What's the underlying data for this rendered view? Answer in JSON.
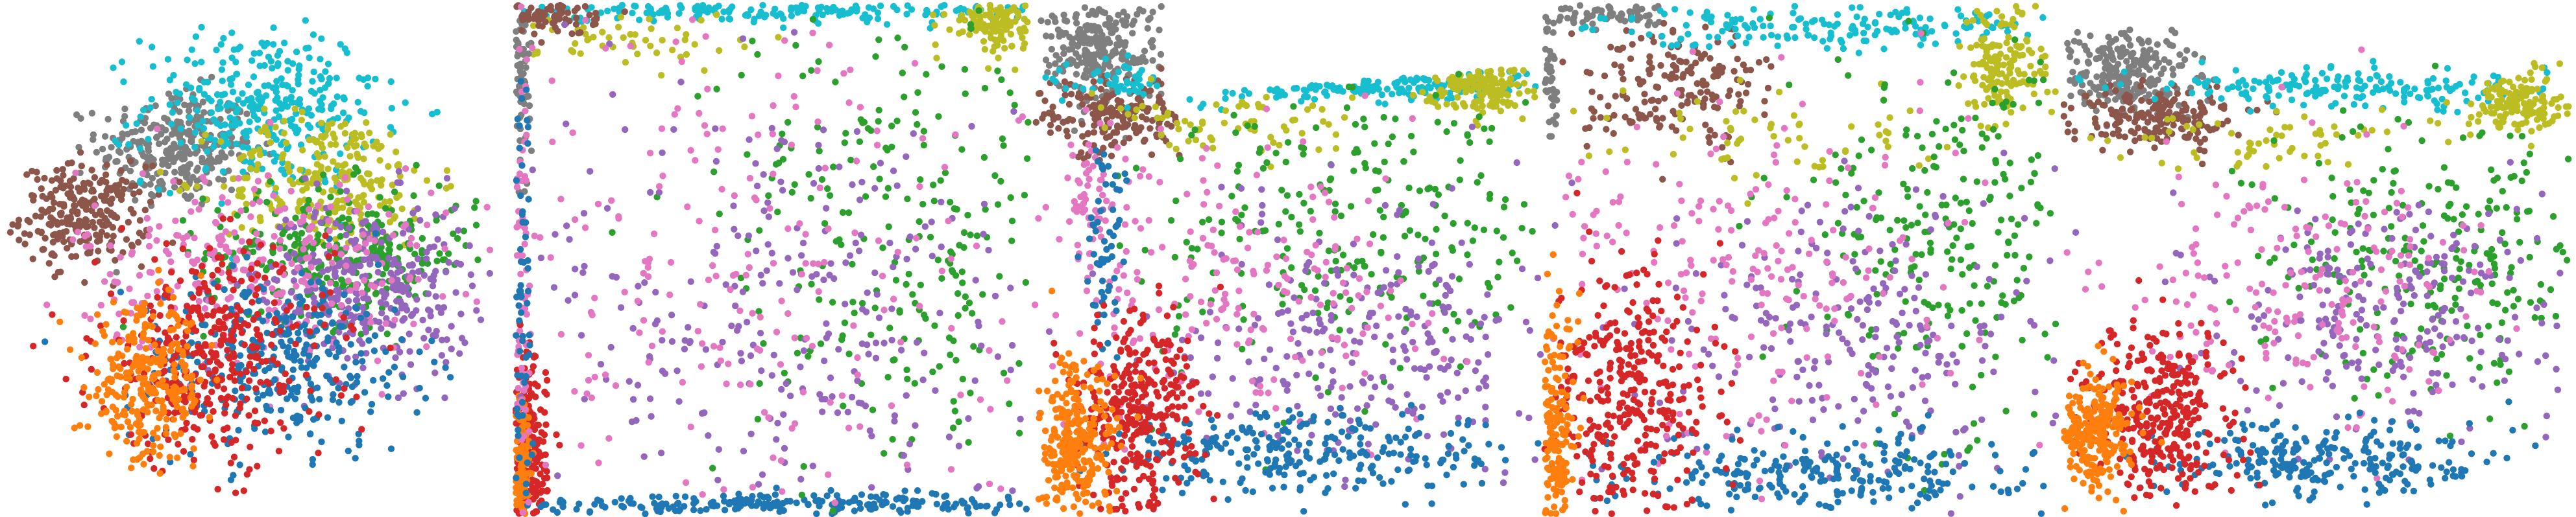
{
  "palette": {
    "blue": "#1f77b4",
    "orange": "#ff7f0e",
    "green": "#2ca02c",
    "red": "#d62728",
    "purple": "#9467bd",
    "brown": "#8c564b",
    "pink": "#e377c2",
    "gray": "#7f7f7f",
    "olive": "#bcbd22",
    "cyan": "#17becf"
  },
  "chart_data": [
    {
      "type": "scatter",
      "title": "",
      "xlabel": "",
      "ylabel": "",
      "axes": "hidden",
      "grid": false,
      "legend": "none",
      "xlim": [
        -1,
        1
      ],
      "ylim": [
        -1,
        1
      ],
      "clusters": [
        {
          "color": "gray",
          "cx": -0.3,
          "cy": 0.45,
          "sx": 0.16,
          "sy": 0.12,
          "n": 300
        },
        {
          "color": "brown",
          "cx": -0.68,
          "cy": 0.18,
          "sx": 0.13,
          "sy": 0.1,
          "n": 260
        },
        {
          "color": "cyan",
          "cx": 0.05,
          "cy": 0.62,
          "sx": 0.24,
          "sy": 0.16,
          "n": 330
        },
        {
          "color": "olive",
          "cx": 0.32,
          "cy": 0.32,
          "sx": 0.22,
          "sy": 0.14,
          "n": 260
        },
        {
          "color": "green",
          "cx": 0.38,
          "cy": 0.02,
          "sx": 0.28,
          "sy": 0.14,
          "n": 300
        },
        {
          "color": "purple",
          "cx": 0.48,
          "cy": -0.12,
          "sx": 0.22,
          "sy": 0.18,
          "n": 320
        },
        {
          "color": "pink",
          "cx": 0.05,
          "cy": -0.02,
          "sx": 0.38,
          "sy": 0.2,
          "n": 280
        },
        {
          "color": "blue",
          "cx": 0.12,
          "cy": -0.42,
          "sx": 0.3,
          "sy": 0.18,
          "n": 340
        },
        {
          "color": "red",
          "cx": -0.15,
          "cy": -0.4,
          "sx": 0.24,
          "sy": 0.22,
          "n": 380
        },
        {
          "color": "orange",
          "cx": -0.42,
          "cy": -0.52,
          "sx": 0.12,
          "sy": 0.16,
          "n": 280
        }
      ]
    },
    {
      "type": "scatter",
      "title": "",
      "xlabel": "",
      "ylabel": "",
      "axes": "hidden",
      "grid": false,
      "legend": "none",
      "xlim": [
        0,
        1
      ],
      "ylim": [
        0,
        1
      ],
      "clusters": [
        {
          "color": "cyan",
          "cx": 0.45,
          "cy": 0.99,
          "sx": 0.35,
          "sy": 0.01,
          "n": 170
        },
        {
          "color": "olive",
          "cx": 0.94,
          "cy": 0.97,
          "sx": 0.05,
          "sy": 0.03,
          "n": 110
        },
        {
          "color": "olive",
          "cx": 0.25,
          "cy": 0.93,
          "sx": 0.1,
          "sy": 0.03,
          "n": 50
        },
        {
          "color": "gray",
          "cx": 0.01,
          "cy": 0.85,
          "sx": 0.01,
          "sy": 0.12,
          "n": 60
        },
        {
          "color": "brown",
          "cx": 0.06,
          "cy": 0.98,
          "sx": 0.05,
          "sy": 0.02,
          "n": 70
        },
        {
          "color": "red",
          "cx": 0.02,
          "cy": 0.1,
          "sx": 0.02,
          "sy": 0.1,
          "n": 230
        },
        {
          "color": "orange",
          "cx": 0.01,
          "cy": 0.08,
          "sx": 0.01,
          "sy": 0.08,
          "n": 120
        },
        {
          "color": "blue",
          "cx": 0.55,
          "cy": 0.02,
          "sx": 0.3,
          "sy": 0.01,
          "n": 220
        },
        {
          "color": "green",
          "cx": 0.75,
          "cy": 0.55,
          "sx": 0.18,
          "sy": 0.25,
          "n": 230
        },
        {
          "color": "purple",
          "cx": 0.55,
          "cy": 0.38,
          "sx": 0.25,
          "sy": 0.25,
          "n": 260
        },
        {
          "color": "pink",
          "cx": 0.4,
          "cy": 0.5,
          "sx": 0.3,
          "sy": 0.3,
          "n": 200
        },
        {
          "color": "pink",
          "cx": 0.01,
          "cy": 0.55,
          "sx": 0.01,
          "sy": 0.25,
          "n": 60
        },
        {
          "color": "blue",
          "cx": 0.01,
          "cy": 0.45,
          "sx": 0.01,
          "sy": 0.25,
          "n": 60
        }
      ]
    },
    {
      "type": "scatter",
      "title": "",
      "xlabel": "",
      "ylabel": "",
      "axes": "hidden",
      "grid": false,
      "legend": "none",
      "xlim": [
        0,
        1
      ],
      "ylim": [
        0,
        1
      ],
      "clusters": [
        {
          "color": "gray",
          "cx": 0.12,
          "cy": 0.91,
          "sx": 0.06,
          "sy": 0.05,
          "n": 260
        },
        {
          "color": "brown",
          "cx": 0.15,
          "cy": 0.78,
          "sx": 0.07,
          "sy": 0.04,
          "n": 180
        },
        {
          "color": "cyan",
          "cx": 0.55,
          "cy": 0.85,
          "sx": 0.25,
          "sy": 0.02,
          "n": 200
        },
        {
          "color": "olive",
          "cx": 0.88,
          "cy": 0.85,
          "sx": 0.05,
          "sy": 0.03,
          "n": 150
        },
        {
          "color": "olive",
          "cx": 0.4,
          "cy": 0.76,
          "sx": 0.14,
          "sy": 0.03,
          "n": 70
        },
        {
          "color": "green",
          "cx": 0.65,
          "cy": 0.55,
          "sx": 0.22,
          "sy": 0.15,
          "n": 250
        },
        {
          "color": "purple",
          "cx": 0.68,
          "cy": 0.35,
          "sx": 0.2,
          "sy": 0.13,
          "n": 260
        },
        {
          "color": "pink",
          "cx": 0.4,
          "cy": 0.45,
          "sx": 0.22,
          "sy": 0.15,
          "n": 200
        },
        {
          "color": "pink",
          "cx": 0.12,
          "cy": 0.62,
          "sx": 0.03,
          "sy": 0.08,
          "n": 60
        },
        {
          "color": "blue",
          "cx": 0.55,
          "cy": 0.12,
          "sx": 0.22,
          "sy": 0.04,
          "n": 260
        },
        {
          "color": "blue",
          "cx": 0.14,
          "cy": 0.5,
          "sx": 0.02,
          "sy": 0.12,
          "n": 60
        },
        {
          "color": "red",
          "cx": 0.2,
          "cy": 0.2,
          "sx": 0.06,
          "sy": 0.1,
          "n": 320
        },
        {
          "color": "orange",
          "cx": 0.08,
          "cy": 0.13,
          "sx": 0.04,
          "sy": 0.08,
          "n": 260
        }
      ]
    },
    {
      "type": "scatter",
      "title": "",
      "xlabel": "",
      "ylabel": "",
      "axes": "hidden",
      "grid": false,
      "legend": "none",
      "xlim": [
        0,
        1
      ],
      "ylim": [
        0,
        1
      ],
      "clusters": [
        {
          "color": "gray",
          "cx": 0.14,
          "cy": 0.98,
          "sx": 0.07,
          "sy": 0.01,
          "n": 60
        },
        {
          "color": "gray",
          "cx": 0.01,
          "cy": 0.86,
          "sx": 0.01,
          "sy": 0.07,
          "n": 40
        },
        {
          "color": "brown",
          "cx": 0.26,
          "cy": 0.84,
          "sx": 0.09,
          "sy": 0.06,
          "n": 180
        },
        {
          "color": "cyan",
          "cx": 0.55,
          "cy": 0.96,
          "sx": 0.22,
          "sy": 0.02,
          "n": 170
        },
        {
          "color": "olive",
          "cx": 0.9,
          "cy": 0.88,
          "sx": 0.04,
          "sy": 0.06,
          "n": 150
        },
        {
          "color": "olive",
          "cx": 0.45,
          "cy": 0.75,
          "sx": 0.18,
          "sy": 0.05,
          "n": 60
        },
        {
          "color": "green",
          "cx": 0.8,
          "cy": 0.55,
          "sx": 0.15,
          "sy": 0.18,
          "n": 230
        },
        {
          "color": "purple",
          "cx": 0.62,
          "cy": 0.35,
          "sx": 0.2,
          "sy": 0.15,
          "n": 240
        },
        {
          "color": "pink",
          "cx": 0.42,
          "cy": 0.48,
          "sx": 0.22,
          "sy": 0.18,
          "n": 200
        },
        {
          "color": "blue",
          "cx": 0.55,
          "cy": 0.08,
          "sx": 0.22,
          "sy": 0.04,
          "n": 240
        },
        {
          "color": "red",
          "cx": 0.17,
          "cy": 0.22,
          "sx": 0.08,
          "sy": 0.14,
          "n": 320
        },
        {
          "color": "orange",
          "cx": 0.02,
          "cy": 0.15,
          "sx": 0.02,
          "sy": 0.12,
          "n": 170
        }
      ]
    },
    {
      "type": "scatter",
      "title": "",
      "xlabel": "",
      "ylabel": "",
      "axes": "hidden",
      "grid": false,
      "legend": "none",
      "xlim": [
        0,
        1
      ],
      "ylim": [
        0,
        1
      ],
      "clusters": [
        {
          "color": "gray",
          "cx": 0.12,
          "cy": 0.89,
          "sx": 0.07,
          "sy": 0.04,
          "n": 240
        },
        {
          "color": "brown",
          "cx": 0.18,
          "cy": 0.8,
          "sx": 0.08,
          "sy": 0.03,
          "n": 180
        },
        {
          "color": "cyan",
          "cx": 0.55,
          "cy": 0.86,
          "sx": 0.22,
          "sy": 0.02,
          "n": 180
        },
        {
          "color": "olive",
          "cx": 0.9,
          "cy": 0.83,
          "sx": 0.05,
          "sy": 0.03,
          "n": 150
        },
        {
          "color": "olive",
          "cx": 0.4,
          "cy": 0.76,
          "sx": 0.15,
          "sy": 0.03,
          "n": 60
        },
        {
          "color": "green",
          "cx": 0.75,
          "cy": 0.52,
          "sx": 0.16,
          "sy": 0.14,
          "n": 240
        },
        {
          "color": "purple",
          "cx": 0.68,
          "cy": 0.4,
          "sx": 0.18,
          "sy": 0.12,
          "n": 240
        },
        {
          "color": "pink",
          "cx": 0.45,
          "cy": 0.45,
          "sx": 0.2,
          "sy": 0.15,
          "n": 200
        },
        {
          "color": "blue",
          "cx": 0.5,
          "cy": 0.1,
          "sx": 0.18,
          "sy": 0.04,
          "n": 240
        },
        {
          "color": "red",
          "cx": 0.2,
          "cy": 0.18,
          "sx": 0.07,
          "sy": 0.1,
          "n": 320
        },
        {
          "color": "orange",
          "cx": 0.06,
          "cy": 0.16,
          "sx": 0.04,
          "sy": 0.06,
          "n": 240
        }
      ]
    }
  ]
}
